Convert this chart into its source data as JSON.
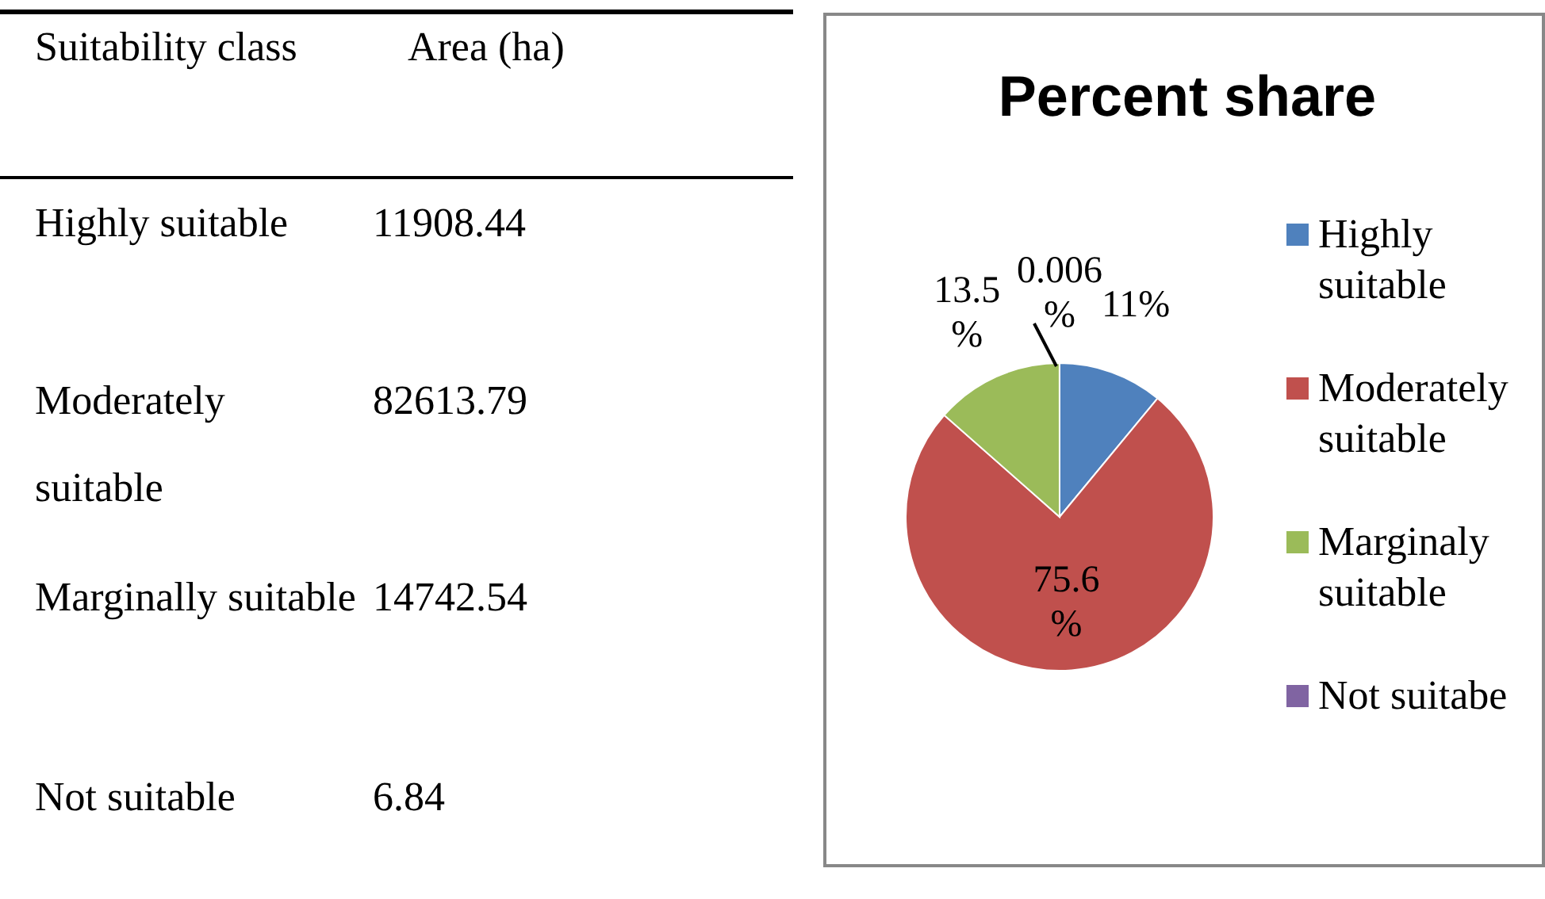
{
  "chart_data": [
    {
      "type": "other",
      "xlabel": "Suitability class",
      "ylabel": "Area (ha)",
      "categories": [
        "Highly suitable",
        "Moderately suitable",
        "Marginally suitable",
        "Not suitable"
      ],
      "values": [
        11908.44,
        82613.79,
        14742.54,
        6.84
      ],
      "data_labels": true
    },
    {
      "type": "pie",
      "title": "Percent share",
      "categories": [
        "Highly suitable",
        "Moderately suitable",
        "Marginaly suitable",
        "Not suitabe"
      ],
      "values": [
        11,
        75.6,
        13.5,
        0.006
      ],
      "colors": [
        "#4f81bd",
        "#c0504d",
        "#9bbb59",
        "#8064a2"
      ],
      "value_labels": [
        "11%",
        "75.6 %",
        "13.5 %",
        "0.006 %"
      ],
      "legend": "right"
    }
  ]
}
